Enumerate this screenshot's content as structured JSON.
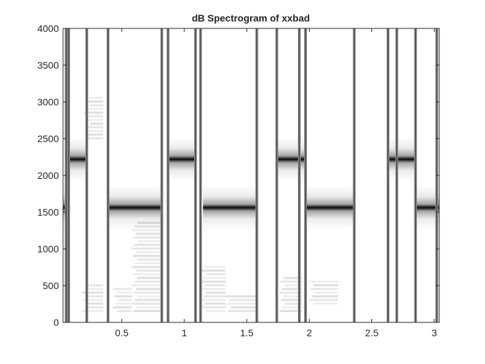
{
  "chart_data": {
    "type": "heatmap",
    "title": "dB Spectrogram of xxbad",
    "xlabel": "",
    "ylabel": "",
    "xlim": [
      0.03,
      3.04
    ],
    "ylim": [
      0,
      4000
    ],
    "x_ticks": [
      0.5,
      1,
      1.5,
      2,
      2.5,
      3
    ],
    "x_tick_labels": [
      "0.5",
      "1",
      "1.5",
      "2",
      "2.5",
      "3"
    ],
    "y_ticks": [
      0,
      500,
      1000,
      1500,
      2000,
      2500,
      3000,
      3500,
      4000
    ],
    "y_tick_labels": [
      "0",
      "500",
      "1000",
      "1500",
      "2000",
      "2500",
      "3000",
      "3500",
      "4000"
    ],
    "colormap": "gray (dark = high dB)",
    "grid": false,
    "tone_segments": [
      {
        "t_start": 0.03,
        "t_end": 0.06,
        "freqs_hz": [
          1562
        ]
      },
      {
        "t_start": 0.06,
        "t_end": 0.23,
        "freqs_hz": [
          2220
        ]
      },
      {
        "t_start": 0.4,
        "t_end": 0.83,
        "freqs_hz": [
          1562
        ]
      },
      {
        "t_start": 0.88,
        "t_end": 1.1,
        "freqs_hz": [
          2220
        ]
      },
      {
        "t_start": 1.15,
        "t_end": 1.58,
        "freqs_hz": [
          1562
        ]
      },
      {
        "t_start": 1.75,
        "t_end": 1.96,
        "freqs_hz": [
          2220
        ]
      },
      {
        "t_start": 1.96,
        "t_end": 2.37,
        "freqs_hz": [
          1562
        ]
      },
      {
        "t_start": 2.62,
        "t_end": 2.84,
        "freqs_hz": [
          2220
        ]
      },
      {
        "t_start": 2.84,
        "t_end": 3.04,
        "freqs_hz": [
          1562
        ]
      }
    ],
    "vertical_transients_s": [
      0.055,
      0.075,
      0.22,
      0.39,
      0.82,
      0.87,
      1.09,
      1.13,
      1.58,
      1.74,
      1.92,
      1.97,
      2.36,
      2.63,
      2.7,
      2.85,
      3.02
    ],
    "noise_patches": [
      {
        "t_start": 0.18,
        "t_end": 0.35,
        "f_low": 150,
        "f_high": 550
      },
      {
        "t_start": 0.43,
        "t_end": 0.58,
        "f_low": 150,
        "f_high": 500
      },
      {
        "t_start": 0.58,
        "t_end": 0.82,
        "f_low": 150,
        "f_high": 1400
      },
      {
        "t_start": 1.13,
        "t_end": 1.33,
        "f_low": 150,
        "f_high": 800
      },
      {
        "t_start": 1.33,
        "t_end": 1.57,
        "f_low": 150,
        "f_high": 400
      },
      {
        "t_start": 1.76,
        "t_end": 1.94,
        "f_low": 150,
        "f_high": 650
      },
      {
        "t_start": 2.0,
        "t_end": 2.23,
        "f_low": 250,
        "f_high": 600
      },
      {
        "t_start": 0.2,
        "t_end": 0.35,
        "f_low": 2500,
        "f_high": 3100
      }
    ]
  }
}
